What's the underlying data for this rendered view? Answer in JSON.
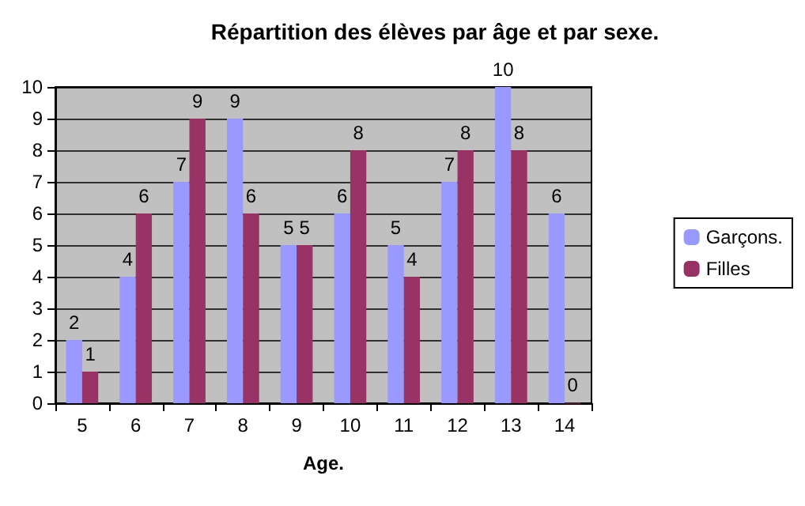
{
  "chart_data": {
    "type": "bar",
    "title": "Répartition des élèves par âge et par sexe.",
    "xlabel": "Age.",
    "categories": [
      "5",
      "6",
      "7",
      "8",
      "9",
      "10",
      "11",
      "12",
      "13",
      "14"
    ],
    "series": [
      {
        "name": "Garçons.",
        "color": "#9999ff",
        "values": [
          2,
          4,
          7,
          9,
          5,
          6,
          5,
          7,
          10,
          6
        ]
      },
      {
        "name": "Filles",
        "color": "#993366",
        "values": [
          1,
          6,
          9,
          6,
          5,
          8,
          4,
          8,
          8,
          0
        ]
      }
    ],
    "ylim": [
      0,
      10
    ],
    "yticks": [
      0,
      1,
      2,
      3,
      4,
      5,
      6,
      7,
      8,
      9,
      10
    ],
    "grid": "y",
    "legend": "right",
    "data_labels": true
  }
}
